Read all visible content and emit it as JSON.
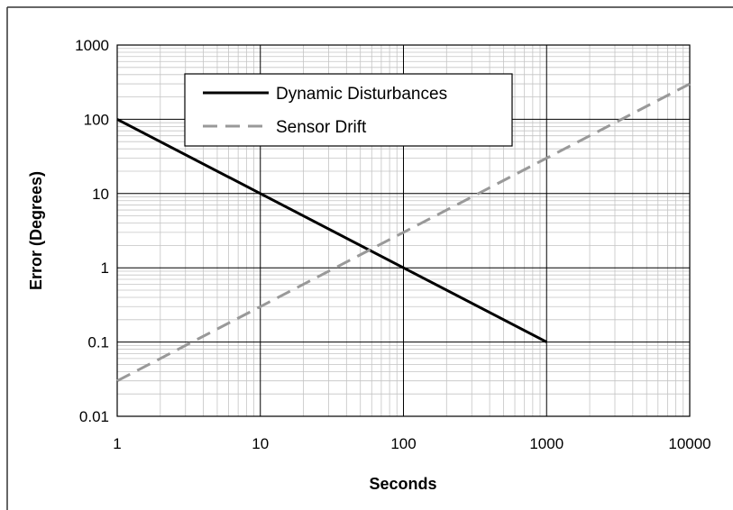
{
  "chart_data": {
    "type": "line",
    "title": "",
    "xlabel": "Seconds",
    "ylabel": "Error (Degrees)",
    "x_scale": "log",
    "y_scale": "log",
    "xlim": [
      1,
      10000
    ],
    "ylim": [
      0.01,
      1000
    ],
    "grid": true,
    "legend_position": "top-left",
    "x_ticks": [
      "1",
      "10",
      "100",
      "1000",
      "10000"
    ],
    "y_ticks": [
      "0.01",
      "0.1",
      "1",
      "10",
      "100",
      "1000"
    ],
    "series": [
      {
        "name": "Dynamic Disturbances",
        "style": "solid",
        "color": "#000000",
        "x": [
          1,
          10,
          100,
          1000
        ],
        "y": [
          100,
          10,
          1,
          0.1
        ]
      },
      {
        "name": "Sensor Drift",
        "style": "dashed",
        "color": "#999999",
        "x": [
          1,
          10,
          100,
          1000,
          10000
        ],
        "y": [
          0.03,
          0.3,
          3,
          30,
          300
        ]
      }
    ]
  }
}
